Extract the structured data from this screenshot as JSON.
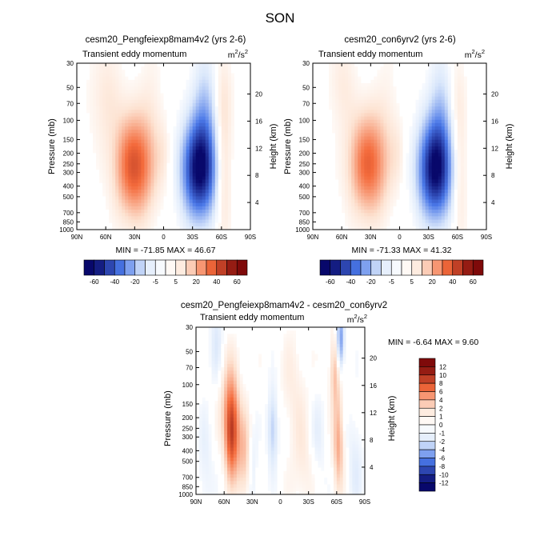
{
  "page_title": "SON",
  "colors": {
    "cool_min": "#08086b",
    "cool_mid": "#4a78e8",
    "cool_light": "#dbe8fb",
    "neutral": "#ffffff",
    "warm_light": "#fde3d2",
    "warm_mid": "#f46b3c",
    "warm_max": "#7f0a0a"
  },
  "chart_data": [
    {
      "type": "heatmap",
      "title": "cesm20_Pengfeiexp8mam4v2 (yrs 2-6)",
      "subtitle": "Transient eddy momentum",
      "units": "m²/s²",
      "units_base": "m",
      "units_sup": "2",
      "units_den": "/s",
      "xlabel": "",
      "ylabel": "Pressure (mb)",
      "y2label": "Height (km)",
      "x_ticks": [
        "90N",
        "60N",
        "30N",
        "0",
        "30S",
        "60S",
        "90S"
      ],
      "x_range": [
        90,
        -90
      ],
      "p_ticks": [
        30,
        50,
        70,
        100,
        150,
        200,
        250,
        300,
        400,
        500,
        700,
        850,
        1000
      ],
      "p_range": [
        30,
        1000
      ],
      "height_ticks": [
        4,
        8,
        12,
        16,
        20
      ],
      "field_max_abs": 70,
      "stats": "MIN = -71.85  MAX =  46.67",
      "min": -71.85,
      "max": 46.67,
      "features": [
        {
          "lat": 30,
          "p": 260,
          "amp": 46,
          "wlat": 14,
          "wlogp": 0.32
        },
        {
          "lat": -37,
          "p": 280,
          "amp": -72,
          "wlat": 12,
          "wlogp": 0.3
        },
        {
          "lat": -42,
          "p": 80,
          "amp": -18,
          "wlat": 8,
          "wlogp": 0.35
        },
        {
          "lat": -62,
          "p": 300,
          "amp": 14,
          "wlat": 6,
          "wlogp": 0.45
        },
        {
          "lat": -62,
          "p": 60,
          "amp": 7,
          "wlat": 6,
          "wlogp": 0.3
        },
        {
          "lat": 60,
          "p": 60,
          "amp": 9,
          "wlat": 12,
          "wlogp": 0.35
        },
        {
          "lat": 0,
          "p": 200,
          "amp": 6,
          "wlat": 5,
          "wlogp": 0.2
        },
        {
          "lat": 12,
          "p": 60,
          "amp": 5,
          "wlat": 8,
          "wlogp": 0.4
        },
        {
          "lat": -82,
          "p": 60,
          "amp": 3,
          "wlat": 6,
          "wlogp": 0.4
        }
      ],
      "colorbar": {
        "levels": [
          -60,
          -50,
          -40,
          -30,
          -20,
          -10,
          -5,
          0,
          5,
          10,
          20,
          30,
          40,
          50,
          60
        ],
        "labels": [
          "-60",
          "-40",
          "-20",
          "-5",
          "5",
          "20",
          "40",
          "60"
        ]
      }
    },
    {
      "type": "heatmap",
      "title": "cesm20_con6yrv2 (yrs 2-6)",
      "subtitle": "Transient eddy momentum",
      "units": "m²/s²",
      "units_base": "m",
      "units_sup": "2",
      "units_den": "/s",
      "xlabel": "",
      "ylabel": "Pressure (mb)",
      "y2label": "Height (km)",
      "x_ticks": [
        "90N",
        "60N",
        "30N",
        "0",
        "30S",
        "60S",
        "90S"
      ],
      "x_range": [
        90,
        -90
      ],
      "p_ticks": [
        30,
        50,
        70,
        100,
        150,
        200,
        250,
        300,
        400,
        500,
        700,
        850,
        1000
      ],
      "p_range": [
        30,
        1000
      ],
      "height_ticks": [
        4,
        8,
        12,
        16,
        20
      ],
      "field_max_abs": 70,
      "stats": "MIN = -71.33  MAX =  41.32",
      "min": -71.33,
      "max": 41.32,
      "features": [
        {
          "lat": 32,
          "p": 250,
          "amp": 41,
          "wlat": 14,
          "wlogp": 0.32
        },
        {
          "lat": -37,
          "p": 280,
          "amp": -71,
          "wlat": 12,
          "wlogp": 0.3
        },
        {
          "lat": -42,
          "p": 80,
          "amp": -15,
          "wlat": 8,
          "wlogp": 0.35
        },
        {
          "lat": -62,
          "p": 300,
          "amp": 12,
          "wlat": 6,
          "wlogp": 0.45
        },
        {
          "lat": 60,
          "p": 45,
          "amp": 8,
          "wlat": 10,
          "wlogp": 0.3
        },
        {
          "lat": -60,
          "p": 60,
          "amp": 5,
          "wlat": 6,
          "wlogp": 0.3
        },
        {
          "lat": 2,
          "p": 200,
          "amp": 6,
          "wlat": 5,
          "wlogp": 0.2
        },
        {
          "lat": 12,
          "p": 60,
          "amp": 4,
          "wlat": 8,
          "wlogp": 0.4
        }
      ],
      "colorbar": {
        "levels": [
          -60,
          -50,
          -40,
          -30,
          -20,
          -10,
          -5,
          0,
          5,
          10,
          20,
          30,
          40,
          50,
          60
        ],
        "labels": [
          "-60",
          "-40",
          "-20",
          "-5",
          "5",
          "20",
          "40",
          "60"
        ]
      }
    },
    {
      "type": "heatmap",
      "title": "cesm20_Pengfeiexp8mam4v2 - cesm20_con6yrv2",
      "subtitle": "Transient eddy momentum",
      "units": "m²/s²",
      "units_base": "m",
      "units_sup": "2",
      "units_den": "/s",
      "xlabel": "",
      "ylabel": "Pressure (mb)",
      "y2label": "Height (km)",
      "x_ticks": [
        "90N",
        "60N",
        "30N",
        "0",
        "30S",
        "60S",
        "90S"
      ],
      "x_range": [
        90,
        -90
      ],
      "p_ticks": [
        30,
        50,
        70,
        100,
        150,
        200,
        250,
        300,
        400,
        500,
        700,
        850,
        1000
      ],
      "p_range": [
        30,
        1000
      ],
      "height_ticks": [
        4,
        8,
        12,
        16,
        20
      ],
      "field_max_abs": 14,
      "stats": "MIN =  -6.64  MAX =   9.60",
      "min": -6.64,
      "max": 9.6,
      "features": [
        {
          "lat": 52,
          "p": 280,
          "amp": 9.6,
          "wlat": 5,
          "wlogp": 0.28
        },
        {
          "lat": 38,
          "p": 450,
          "amp": 4,
          "wlat": 6,
          "wlogp": 0.3
        },
        {
          "lat": 8,
          "p": 250,
          "amp": -4,
          "wlat": 4,
          "wlogp": 0.25
        },
        {
          "lat": 30,
          "p": 550,
          "amp": -2.5,
          "wlat": 4,
          "wlogp": 0.3
        },
        {
          "lat": -62,
          "p": 350,
          "amp": 5,
          "wlat": 4,
          "wlogp": 0.3
        },
        {
          "lat": -64,
          "p": 40,
          "amp": -6.6,
          "wlat": 3,
          "wlogp": 0.2
        },
        {
          "lat": -58,
          "p": 75,
          "amp": 4,
          "wlat": 4,
          "wlogp": 0.25
        },
        {
          "lat": 68,
          "p": 40,
          "amp": -2.2,
          "wlat": 5,
          "wlogp": 0.3
        },
        {
          "lat": 55,
          "p": 130,
          "amp": 3,
          "wlat": 8,
          "wlogp": 0.3
        },
        {
          "lat": -40,
          "p": 300,
          "amp": -1.5,
          "wlat": 6,
          "wlogp": 0.3
        },
        {
          "lat": -15,
          "p": 120,
          "amp": 1.5,
          "wlat": 10,
          "wlogp": 0.4
        },
        {
          "lat": -80,
          "p": 500,
          "amp": -1.8,
          "wlat": 6,
          "wlogp": 0.35
        },
        {
          "lat": 80,
          "p": 600,
          "amp": -1.5,
          "wlat": 6,
          "wlogp": 0.4
        },
        {
          "lat": -25,
          "p": 600,
          "amp": 1.5,
          "wlat": 8,
          "wlogp": 0.3
        }
      ],
      "colorbar": {
        "levels": [
          -12,
          -10,
          -8,
          -6,
          -4,
          -2,
          -1,
          0,
          1,
          2,
          4,
          6,
          8,
          10,
          12
        ],
        "labels": [
          "12",
          "10",
          "8",
          "6",
          "4",
          "2",
          "1",
          "0",
          "-1",
          "-2",
          "-4",
          "-6",
          "-8",
          "-10",
          "-12"
        ]
      }
    }
  ]
}
